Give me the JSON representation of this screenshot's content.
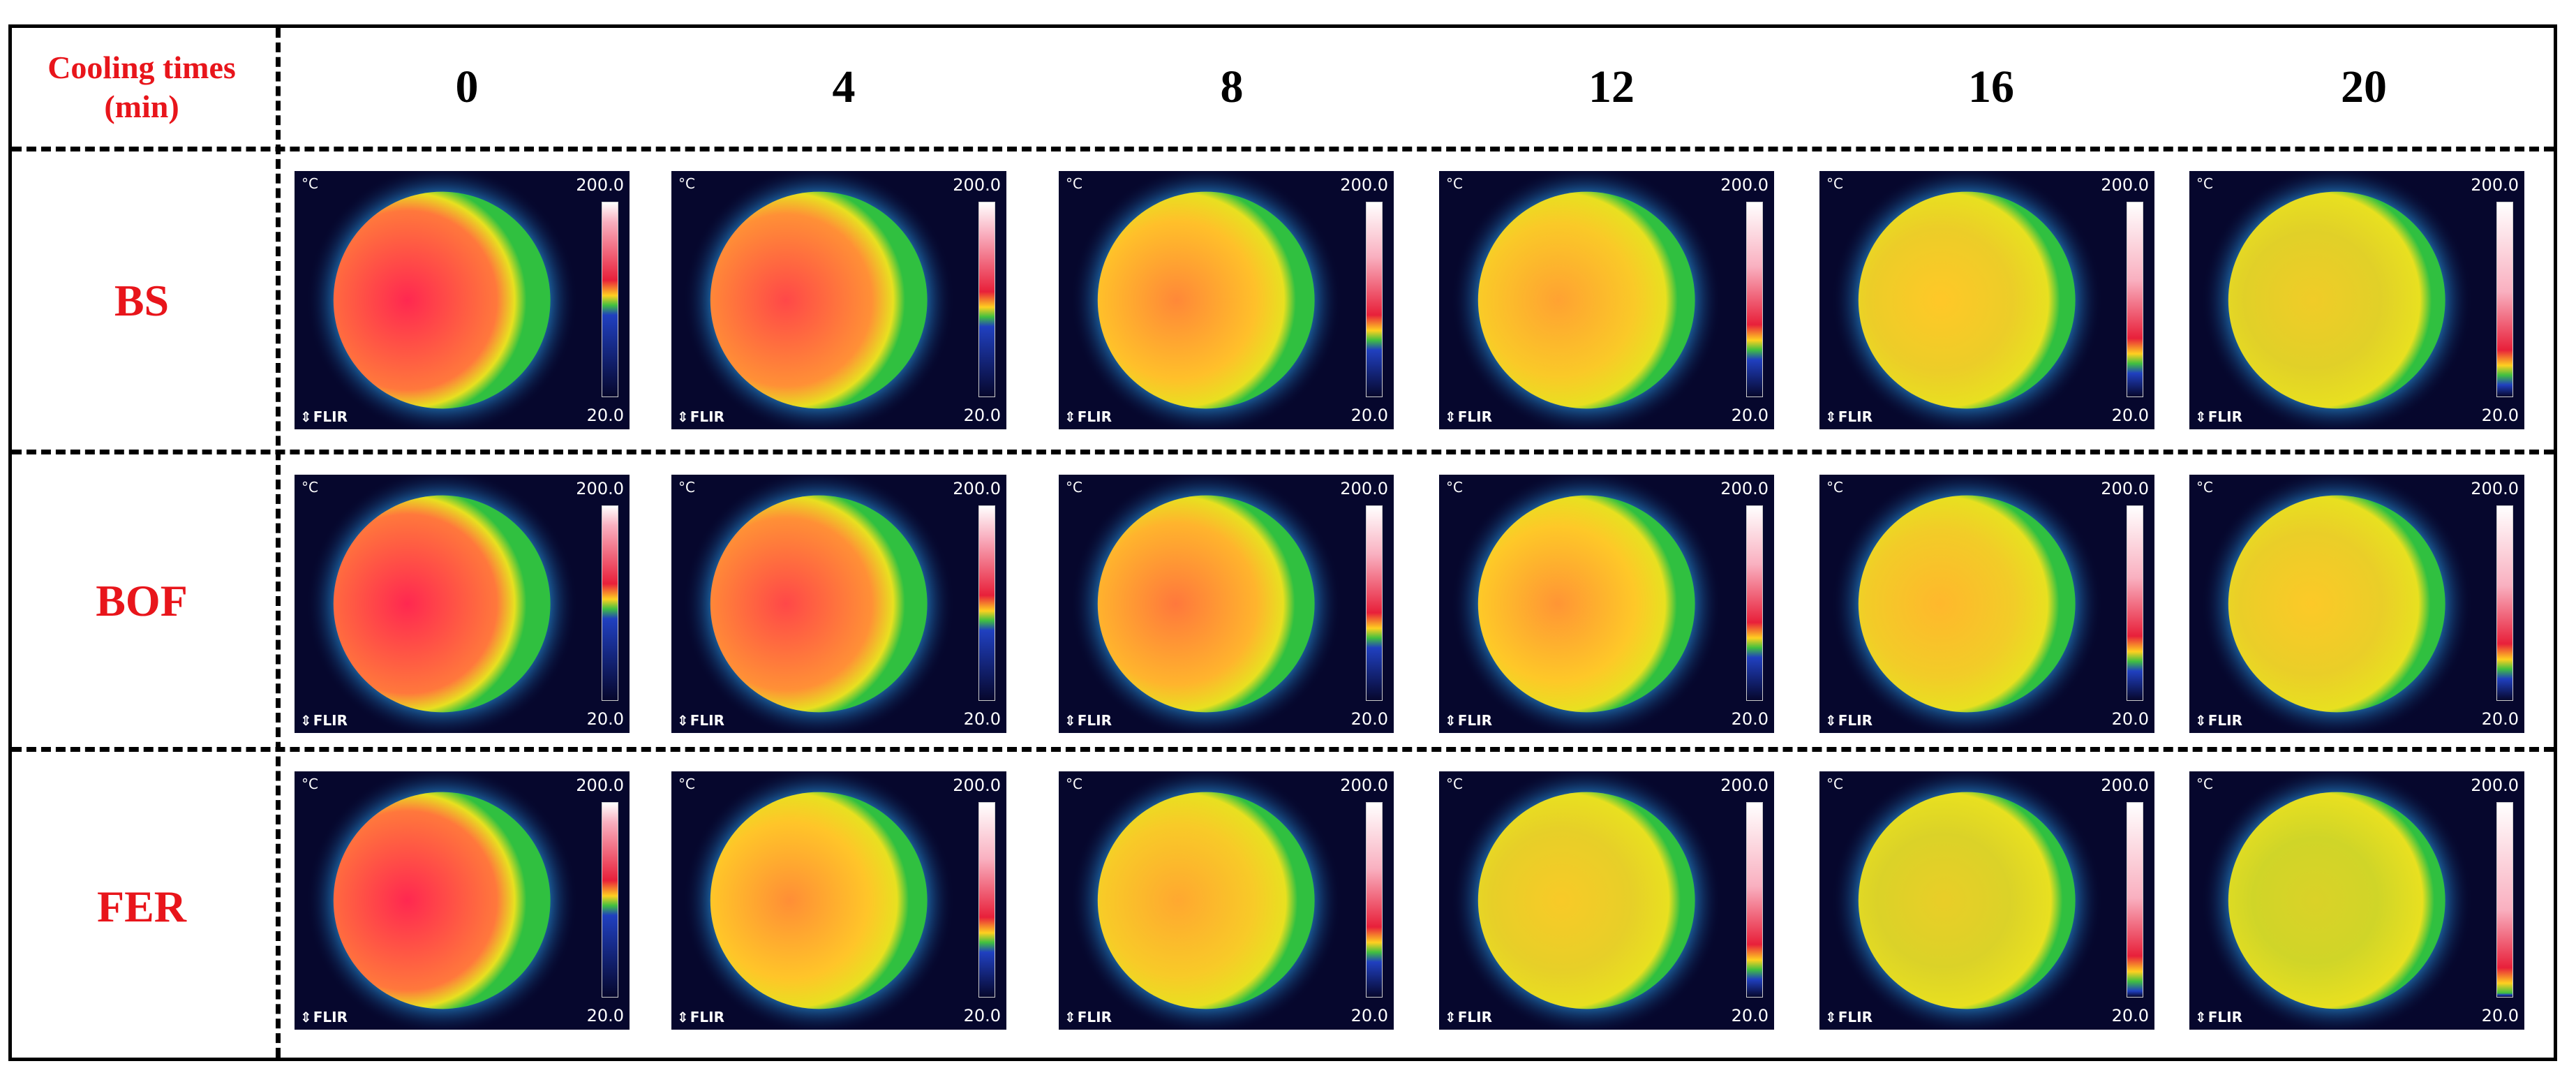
{
  "header": {
    "corner_line1": "Cooling times",
    "corner_line2": "(min)",
    "times": [
      "0",
      "4",
      "8",
      "12",
      "16",
      "20"
    ]
  },
  "rows": [
    "BS",
    "BOF",
    "FER"
  ],
  "image_labels": {
    "unit": "°C",
    "max": "200.0",
    "min": "20.0",
    "logo": "FLIR"
  },
  "colors": {
    "label_red": "#e8151b",
    "background": "#06072d"
  },
  "thermal_levels": {
    "BS": [
      1.0,
      0.9,
      0.7,
      0.62,
      0.5,
      0.4
    ],
    "BOF": [
      1.0,
      0.9,
      0.75,
      0.66,
      0.55,
      0.48
    ],
    "FER": [
      1.0,
      0.68,
      0.6,
      0.45,
      0.35,
      0.25
    ]
  }
}
